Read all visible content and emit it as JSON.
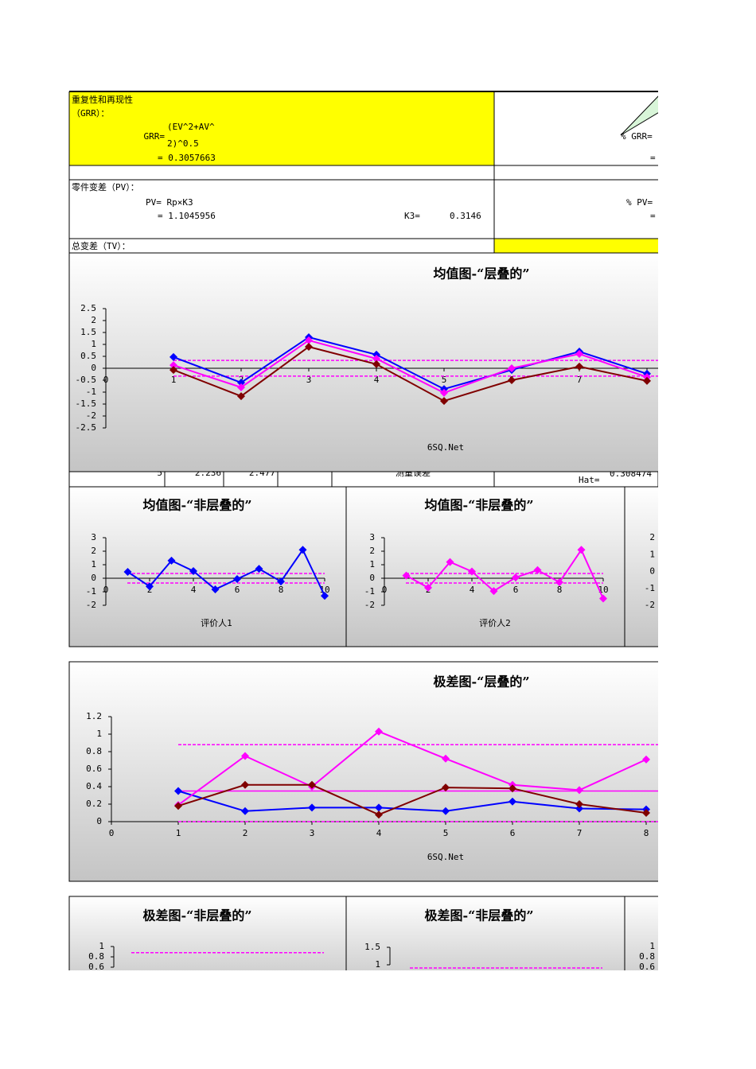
{
  "table": {
    "grr": {
      "label": "重复性和再现性",
      "label2": "（GRR）：",
      "lhs": "GRR=",
      "formula_1": "(EV^2+AV^",
      "formula_2": "2)^0.5",
      "result": "= 0.3057663",
      "pct_lhs": "% GRR=",
      "pct_result": "="
    },
    "pv": {
      "label": "零件变差（PV）：",
      "formula": "PV= Rp×K3",
      "result": "= 1.1045956",
      "k3_label": "K3=",
      "k3": "0.3146",
      "pct_lhs": "% PV=",
      "pct_result": "="
    },
    "tv": {
      "label": "总变差（TV）："
    },
    "hidden_row": [
      "5",
      "2.236",
      "2.477",
      "测量误差",
      "Hat=",
      "0.308474"
    ]
  },
  "chart_data": [
    {
      "type": "line",
      "title": "均值图-“层叠的”",
      "footer": "6SQ.Net",
      "xticks": [
        0,
        1,
        2,
        3,
        4,
        5,
        6,
        7,
        8
      ],
      "ylim": [
        -2.5,
        2.5
      ],
      "yticks": [
        2.5,
        2,
        1.5,
        1,
        0.5,
        0,
        -0.5,
        -1,
        -1.5,
        -2,
        -2.5
      ],
      "x": [
        1,
        2,
        3,
        4,
        5,
        6,
        7,
        8
      ],
      "series": [
        {
          "color": "#0000ff",
          "values": [
            0.47,
            -0.6,
            1.3,
            0.57,
            -0.87,
            -0.07,
            0.7,
            -0.23
          ]
        },
        {
          "color": "#ff00ff",
          "values": [
            0.13,
            -0.8,
            1.17,
            0.4,
            -1.03,
            0,
            0.6,
            -0.37
          ]
        },
        {
          "color": "#800000",
          "values": [
            -0.07,
            -1.17,
            0.9,
            0.17,
            -1.37,
            -0.5,
            0.07,
            -0.53
          ]
        }
      ],
      "limits": [
        {
          "value": 0.33,
          "color": "#ff00ff",
          "dash": true
        },
        {
          "value": -0.33,
          "color": "#ff00ff",
          "dash": true
        }
      ]
    },
    {
      "type": "line",
      "title": "均值图-“非层叠的”",
      "xlabel": "评价人1",
      "xlim": [
        0,
        10
      ],
      "xticks": [
        0,
        2,
        4,
        6,
        8,
        10
      ],
      "ylim": [
        -2,
        3
      ],
      "yticks": [
        3,
        2,
        1,
        0,
        -1,
        -2
      ],
      "x": [
        1,
        2,
        3,
        4,
        5,
        6,
        7,
        8,
        9,
        10
      ],
      "series": [
        {
          "color": "#0000ff",
          "values": [
            0.47,
            -0.6,
            1.3,
            0.53,
            -0.82,
            -0.06,
            0.7,
            -0.24,
            2.1,
            -1.3
          ]
        }
      ],
      "limits": [
        {
          "value": 0.35,
          "color": "#ff00ff",
          "dash": true
        },
        {
          "value": -0.35,
          "color": "#ff00ff",
          "dash": true
        }
      ]
    },
    {
      "type": "line",
      "title": "均值图-“非层叠的”",
      "xlabel": "评价人2",
      "xlim": [
        0,
        10
      ],
      "xticks": [
        0,
        2,
        4,
        6,
        8,
        10
      ],
      "ylim": [
        -2,
        3
      ],
      "yticks": [
        3,
        2,
        1,
        0,
        -1,
        -2
      ],
      "x": [
        1,
        2,
        3,
        4,
        5,
        6,
        7,
        8,
        9,
        10
      ],
      "series": [
        {
          "color": "#ff00ff",
          "values": [
            0.2,
            -0.7,
            1.2,
            0.5,
            -0.95,
            0.06,
            0.6,
            -0.3,
            2.1,
            -1.5
          ]
        }
      ],
      "limits": [
        {
          "value": 0.35,
          "color": "#ff00ff",
          "dash": true
        },
        {
          "value": -0.35,
          "color": "#ff00ff",
          "dash": true
        }
      ]
    },
    {
      "type": "line",
      "yticks": [
        2,
        1,
        0,
        -1,
        -2
      ]
    },
    {
      "type": "line",
      "title": "极差图-“层叠的”",
      "footer": "6SQ.Net",
      "xticks": [
        0,
        1,
        2,
        3,
        4,
        5,
        6,
        7,
        8
      ],
      "ylim": [
        0,
        1.2
      ],
      "yticks": [
        1.2,
        1,
        0.8,
        0.6,
        0.4,
        0.2,
        0
      ],
      "x": [
        1,
        2,
        3,
        4,
        5,
        6,
        7,
        8
      ],
      "series": [
        {
          "color": "#0000ff",
          "values": [
            0.35,
            0.12,
            0.16,
            0.16,
            0.12,
            0.23,
            0.15,
            0.14
          ]
        },
        {
          "color": "#ff00ff",
          "values": [
            0.19,
            0.75,
            0.4,
            1.03,
            0.72,
            0.42,
            0.36,
            0.71
          ]
        },
        {
          "color": "#800000",
          "values": [
            0.18,
            0.42,
            0.42,
            0.08,
            0.39,
            0.38,
            0.2,
            0.1
          ]
        }
      ],
      "limits": [
        {
          "value": 0.88,
          "color": "#ff00ff",
          "dash": true
        },
        {
          "value": 0.35,
          "color": "#ff00ff",
          "dash": false
        },
        {
          "value": 0,
          "color": "#ff00ff",
          "dash": true
        }
      ]
    },
    {
      "type": "line",
      "title": "极差图-“非层叠的”",
      "yticks": [
        1,
        0.8,
        0.6
      ],
      "limits": [
        {
          "value": 0.88,
          "color": "#ff00ff",
          "dash": true
        }
      ]
    },
    {
      "type": "line",
      "title": "极差图-“非层叠的”",
      "yticks": [
        1.5,
        1
      ],
      "limits": [
        {
          "value": 0.91,
          "color": "#ff00ff",
          "dash": true
        }
      ]
    },
    {
      "type": "line",
      "yticks": [
        1,
        0.8,
        0.6
      ]
    }
  ]
}
